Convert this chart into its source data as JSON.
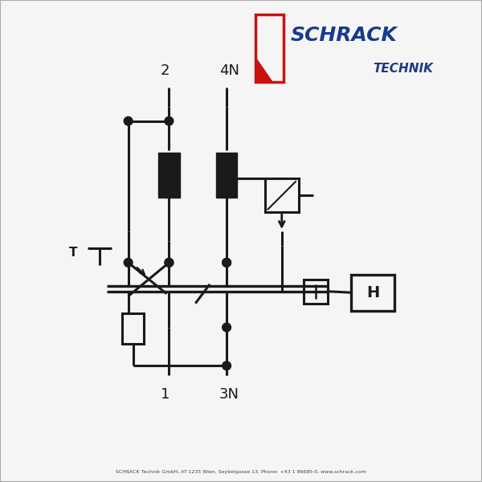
{
  "bg_color": "#f5f5f5",
  "line_color": "#1a1a1a",
  "line_width": 2.2,
  "footer_text": "SCHRACK Technik GmbH, AT-1235 Wien, Seybelgasse 13, Phone: +43 1 86685-0, www.schrack.com",
  "logo_schrack": "SCHRACK",
  "logo_technik": "TECHNIK",
  "label_2": "2",
  "label_4N": "4N",
  "label_1": "1",
  "label_3N": "3N",
  "label_H": "H",
  "label_T": "T"
}
